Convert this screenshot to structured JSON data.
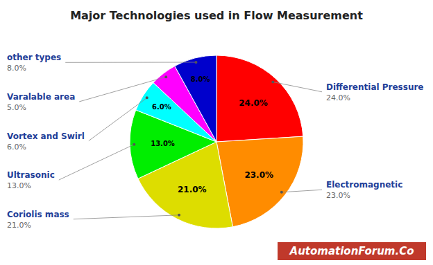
{
  "chart_data": {
    "type": "pie",
    "title": "Major Technologies used in Flow Measurement",
    "categories": [
      "Differential Pressure",
      "Electromagnetic",
      "Coriolis mass",
      "Ultrasonic",
      "Vortex and Swirl",
      "Varalable area",
      "other types"
    ],
    "values": [
      24.0,
      23.0,
      21.0,
      13.0,
      6.0,
      5.0,
      8.0
    ],
    "value_labels": [
      "24.0%",
      "23.0%",
      "21.0%",
      "13.0%",
      "6.0%",
      "5.0%",
      "8.0%"
    ],
    "colors": [
      "#FF0000",
      "#FF8C00",
      "#DDDD00",
      "#00EE00",
      "#00FFFF",
      "#FF00FF",
      "#0000CC"
    ],
    "data_labels": true,
    "annotations": [
      "AutomationForum.Co"
    ]
  }
}
